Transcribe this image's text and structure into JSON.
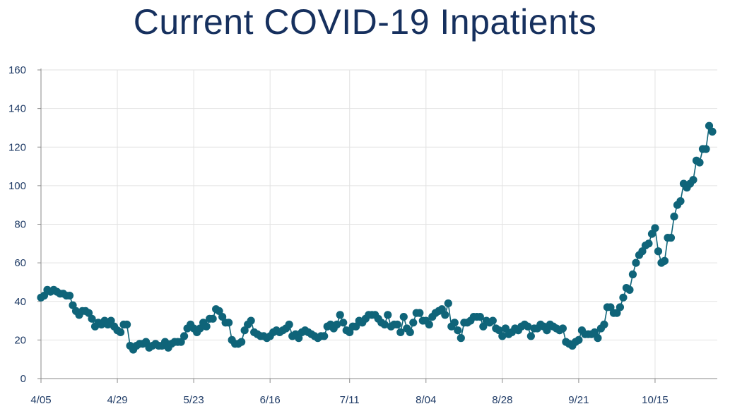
{
  "colors": {
    "series": "#0f6479",
    "grid": "#e2e2e2",
    "axis": "#8a8a8a",
    "title": "#16305e"
  },
  "chart_data": {
    "type": "line",
    "title": "Current COVID-19 Inpatients",
    "xlabel": "",
    "ylabel": "",
    "ylim": [
      0,
      160
    ],
    "yticks": [
      0,
      20,
      40,
      60,
      80,
      100,
      120,
      140,
      160
    ],
    "x_tick_labels": [
      "4/05",
      "4/29",
      "5/23",
      "6/16",
      "7/11",
      "8/04",
      "8/28",
      "9/21",
      "10/15"
    ],
    "x_tick_index": [
      0,
      24,
      48,
      72,
      97,
      121,
      145,
      169,
      193
    ],
    "marker": "circle",
    "grid": true,
    "legend": "none",
    "series": [
      {
        "values": [
          42,
          43,
          46,
          45,
          46,
          45,
          44,
          44,
          43,
          43,
          38,
          35,
          33,
          35,
          35,
          34,
          31,
          27,
          29,
          28,
          30,
          28,
          30,
          27,
          25,
          24,
          28,
          28,
          17,
          15,
          17,
          18,
          18,
          19,
          16,
          17,
          18,
          17,
          17,
          19,
          16,
          18,
          19,
          19,
          19,
          22,
          26,
          28,
          26,
          24,
          26,
          29,
          27,
          31,
          31,
          36,
          35,
          32,
          29,
          29,
          20,
          18,
          18,
          19,
          25,
          28,
          30,
          24,
          23,
          22,
          22,
          21,
          22,
          24,
          25,
          24,
          25,
          26,
          28,
          22,
          23,
          21,
          24,
          25,
          24,
          23,
          22,
          21,
          22,
          22,
          27,
          28,
          26,
          28,
          33,
          29,
          25,
          24,
          27,
          27,
          30,
          29,
          31,
          33,
          33,
          33,
          31,
          29,
          28,
          33,
          27,
          28,
          28,
          24,
          32,
          26,
          24,
          29,
          34,
          34,
          30,
          30,
          28,
          32,
          34,
          35,
          36,
          33,
          39,
          27,
          29,
          25,
          21,
          29,
          29,
          30,
          32,
          32,
          32,
          27,
          30,
          29,
          30,
          26,
          25,
          22,
          26,
          23,
          24,
          26,
          25,
          27,
          28,
          27,
          22,
          26,
          26,
          28,
          27,
          25,
          28,
          27,
          26,
          25,
          26,
          19,
          18,
          17,
          19,
          20,
          25,
          23,
          23,
          23,
          24,
          21,
          26,
          28,
          37,
          37,
          34,
          34,
          37,
          42,
          47,
          46,
          54,
          60,
          64,
          66,
          69,
          70,
          75,
          78,
          66,
          60,
          61,
          73,
          73,
          84,
          90,
          92,
          101,
          99,
          101,
          103,
          113,
          112,
          119,
          119,
          131,
          128
        ]
      }
    ]
  }
}
